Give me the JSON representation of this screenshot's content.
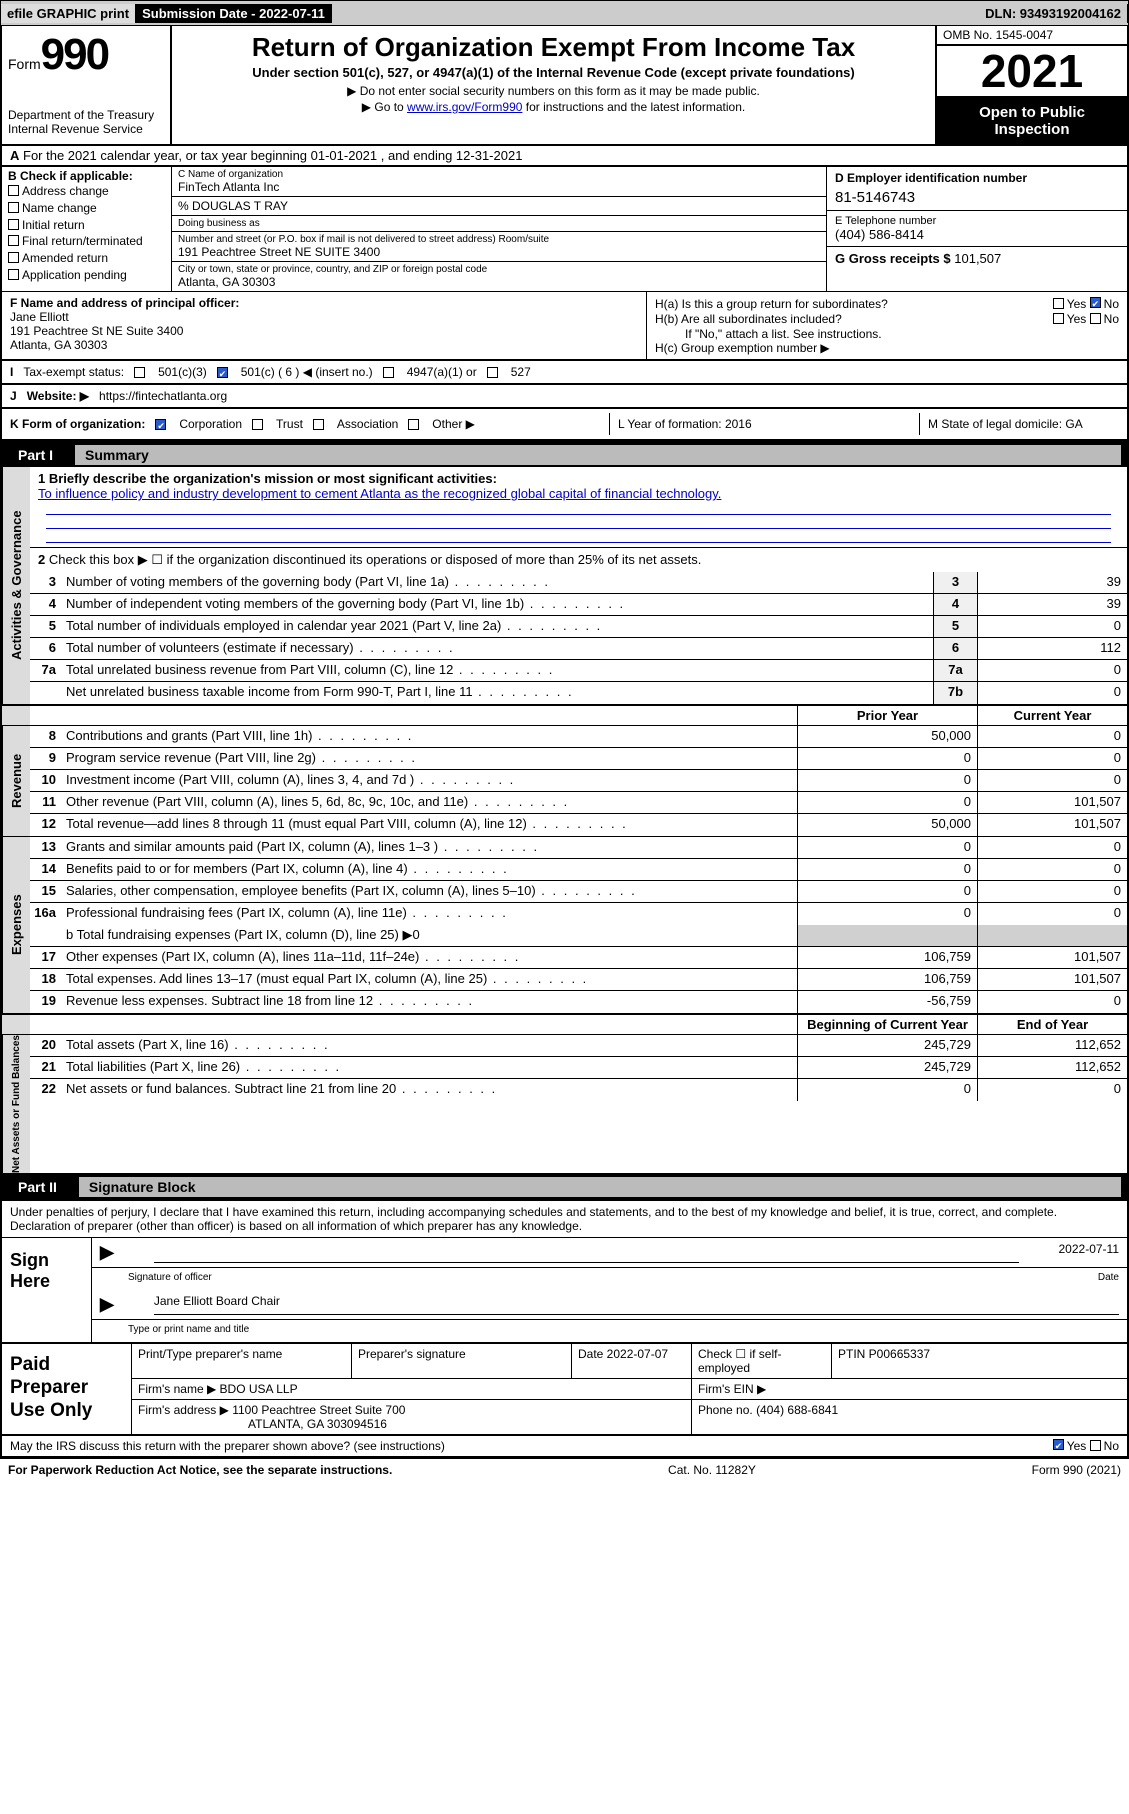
{
  "topbar": {
    "efile": "efile GRAPHIC print",
    "submission": "Submission Date - 2022-07-11",
    "dln": "DLN: 93493192004162"
  },
  "header": {
    "form_prefix": "Form",
    "form_number": "990",
    "dept": "Department of the Treasury",
    "irs": "Internal Revenue Service",
    "title": "Return of Organization Exempt From Income Tax",
    "subtitle": "Under section 501(c), 527, or 4947(a)(1) of the Internal Revenue Code (except private foundations)",
    "note1": "▶ Do not enter social security numbers on this form as it may be made public.",
    "note2_pre": "▶ Go to ",
    "note2_link": "www.irs.gov/Form990",
    "note2_post": " for instructions and the latest information.",
    "omb": "OMB No. 1545-0047",
    "year": "2021",
    "otp": "Open to Public Inspection"
  },
  "row_a": "For the 2021 calendar year, or tax year beginning 01-01-2021    , and ending 12-31-2021",
  "col_b": {
    "hdr": "B Check if applicable:",
    "items": [
      "Address change",
      "Name change",
      "Initial return",
      "Final return/terminated",
      "Amended return",
      "Application pending"
    ]
  },
  "col_c": {
    "name_lbl": "C Name of organization",
    "name": "FinTech Atlanta Inc",
    "care": "% DOUGLAS T RAY",
    "dba_lbl": "Doing business as",
    "addr_lbl": "Number and street (or P.O. box if mail is not delivered to street address)    Room/suite",
    "addr": "191 Peachtree Street NE SUITE 3400",
    "city_lbl": "City or town, state or province, country, and ZIP or foreign postal code",
    "city": "Atlanta, GA  30303"
  },
  "col_d": {
    "ein_lbl": "D Employer identification number",
    "ein": "81-5146743",
    "tel_lbl": "E Telephone number",
    "tel": "(404) 586-8414",
    "gross_lbl": "G Gross receipts $",
    "gross": "101,507"
  },
  "row_f": {
    "lbl": "F  Name and address of principal officer:",
    "name": "Jane Elliott",
    "addr1": "191 Peachtree St NE Suite 3400",
    "addr2": "Atlanta, GA  30303"
  },
  "row_h": {
    "ha": "H(a)  Is this a group return for subordinates?",
    "hb": "H(b)  Are all subordinates included?",
    "hb_note": "If \"No,\" attach a list. See instructions.",
    "hc": "H(c)  Group exemption number ▶"
  },
  "row_i": {
    "lbl": "Tax-exempt status:",
    "a": "501(c)(3)",
    "b": "501(c) ( 6 ) ◀ (insert no.)",
    "c": "4947(a)(1) or",
    "d": "527"
  },
  "row_j": {
    "lbl": "Website: ▶",
    "val": "https://fintechatlanta.org"
  },
  "row_k": {
    "lbl": "K Form of organization:",
    "opts": [
      "Corporation",
      "Trust",
      "Association",
      "Other ▶"
    ],
    "l": "L Year of formation: 2016",
    "m": "M State of legal domicile: GA"
  },
  "part1": {
    "label": "Part I",
    "title": "Summary"
  },
  "summary": {
    "vtab_a": "Activities & Governance",
    "line1_lbl": "1  Briefly describe the organization's mission or most significant activities:",
    "line1_txt": "To influence policy and industry development to cement Atlanta as the recognized global capital of financial technology.",
    "line2": "Check this box ▶ ☐  if the organization discontinued its operations or disposed of more than 25% of its net assets.",
    "lines_ag": [
      {
        "n": "3",
        "d": "Number of voting members of the governing body (Part VI, line 1a)",
        "box": "3",
        "v": "39"
      },
      {
        "n": "4",
        "d": "Number of independent voting members of the governing body (Part VI, line 1b)",
        "box": "4",
        "v": "39"
      },
      {
        "n": "5",
        "d": "Total number of individuals employed in calendar year 2021 (Part V, line 2a)",
        "box": "5",
        "v": "0"
      },
      {
        "n": "6",
        "d": "Total number of volunteers (estimate if necessary)",
        "box": "6",
        "v": "112"
      },
      {
        "n": "7a",
        "d": "Total unrelated business revenue from Part VIII, column (C), line 12",
        "box": "7a",
        "v": "0"
      },
      {
        "n": "",
        "d": "Net unrelated business taxable income from Form 990-T, Part I, line 11",
        "box": "7b",
        "v": "0"
      }
    ],
    "hdr_py": "Prior Year",
    "hdr_cy": "Current Year",
    "vtab_r": "Revenue",
    "lines_rev": [
      {
        "n": "8",
        "d": "Contributions and grants (Part VIII, line 1h)",
        "py": "50,000",
        "cy": "0"
      },
      {
        "n": "9",
        "d": "Program service revenue (Part VIII, line 2g)",
        "py": "0",
        "cy": "0"
      },
      {
        "n": "10",
        "d": "Investment income (Part VIII, column (A), lines 3, 4, and 7d )",
        "py": "0",
        "cy": "0"
      },
      {
        "n": "11",
        "d": "Other revenue (Part VIII, column (A), lines 5, 6d, 8c, 9c, 10c, and 11e)",
        "py": "0",
        "cy": "101,507"
      },
      {
        "n": "12",
        "d": "Total revenue—add lines 8 through 11 (must equal Part VIII, column (A), line 12)",
        "py": "50,000",
        "cy": "101,507"
      }
    ],
    "vtab_e": "Expenses",
    "lines_exp": [
      {
        "n": "13",
        "d": "Grants and similar amounts paid (Part IX, column (A), lines 1–3 )",
        "py": "0",
        "cy": "0"
      },
      {
        "n": "14",
        "d": "Benefits paid to or for members (Part IX, column (A), line 4)",
        "py": "0",
        "cy": "0"
      },
      {
        "n": "15",
        "d": "Salaries, other compensation, employee benefits (Part IX, column (A), lines 5–10)",
        "py": "0",
        "cy": "0"
      },
      {
        "n": "16a",
        "d": "Professional fundraising fees (Part IX, column (A), line 11e)",
        "py": "0",
        "cy": "0"
      }
    ],
    "line16b": "b  Total fundraising expenses (Part IX, column (D), line 25) ▶0",
    "lines_exp2": [
      {
        "n": "17",
        "d": "Other expenses (Part IX, column (A), lines 11a–11d, 11f–24e)",
        "py": "106,759",
        "cy": "101,507"
      },
      {
        "n": "18",
        "d": "Total expenses. Add lines 13–17 (must equal Part IX, column (A), line 25)",
        "py": "106,759",
        "cy": "101,507"
      },
      {
        "n": "19",
        "d": "Revenue less expenses. Subtract line 18 from line 12",
        "py": "-56,759",
        "cy": "0"
      }
    ],
    "vtab_n": "Net Assets or Fund Balances",
    "hdr_boy": "Beginning of Current Year",
    "hdr_eoy": "End of Year",
    "lines_net": [
      {
        "n": "20",
        "d": "Total assets (Part X, line 16)",
        "py": "245,729",
        "cy": "112,652"
      },
      {
        "n": "21",
        "d": "Total liabilities (Part X, line 26)",
        "py": "245,729",
        "cy": "112,652"
      },
      {
        "n": "22",
        "d": "Net assets or fund balances. Subtract line 21 from line 20",
        "py": "0",
        "cy": "0"
      }
    ]
  },
  "part2": {
    "label": "Part II",
    "title": "Signature Block"
  },
  "sig": {
    "intro": "Under penalties of perjury, I declare that I have examined this return, including accompanying schedules and statements, and to the best of my knowledge and belief, it is true, correct, and complete. Declaration of preparer (other than officer) is based on all information of which preparer has any knowledge.",
    "sign_here": "Sign Here",
    "sig_officer": "Signature of officer",
    "date_lbl": "Date",
    "date": "2022-07-11",
    "name": "Jane Elliott  Board Chair",
    "name_lbl": "Type or print name and title"
  },
  "paid": {
    "label": "Paid Preparer Use Only",
    "r1": [
      "Print/Type preparer's name",
      "Preparer's signature",
      "Date 2022-07-07",
      "Check ☐ if self-employed",
      "PTIN P00665337"
    ],
    "firm_lbl": "Firm's name   ▶",
    "firm": "BDO USA LLP",
    "ein_lbl": "Firm's EIN ▶",
    "addr_lbl": "Firm's address ▶",
    "addr": "1100 Peachtree Street Suite 700",
    "addr2": "ATLANTA, GA  303094516",
    "phone_lbl": "Phone no.",
    "phone": "(404) 688-6841"
  },
  "may": {
    "q": "May the IRS discuss this return with the preparer shown above? (see instructions)",
    "yes": "Yes",
    "no": "No"
  },
  "footer": {
    "l": "For Paperwork Reduction Act Notice, see the separate instructions.",
    "m": "Cat. No. 11282Y",
    "r": "Form 990 (2021)"
  }
}
